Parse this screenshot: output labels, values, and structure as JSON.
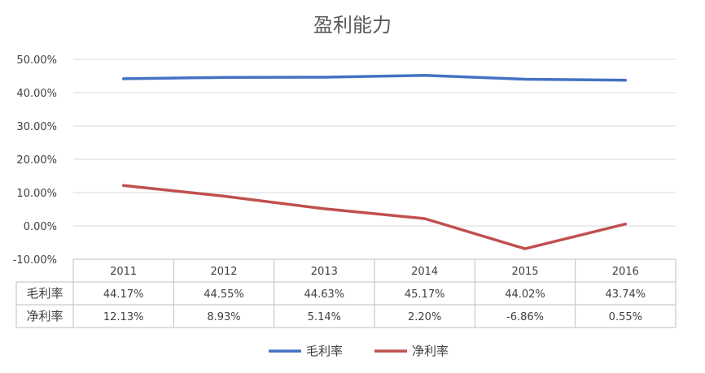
{
  "chart_data": {
    "type": "line",
    "title": "盈利能力",
    "categories": [
      "2011",
      "2012",
      "2013",
      "2014",
      "2015",
      "2016"
    ],
    "ylim": [
      -10,
      50
    ],
    "y_ticks": [
      "50.00%",
      "40.00%",
      "30.00%",
      "20.00%",
      "10.00%",
      "0.00%",
      "-10.00%"
    ],
    "series": [
      {
        "name": "毛利率",
        "color": "#4472c4",
        "values": [
          44.17,
          44.55,
          44.63,
          45.17,
          44.02,
          43.74
        ],
        "labels": [
          "44.17%",
          "44.55%",
          "44.63%",
          "45.17%",
          "44.02%",
          "43.74%"
        ]
      },
      {
        "name": "净利率",
        "color": "#c0504d",
        "values": [
          12.13,
          8.93,
          5.14,
          2.2,
          -6.86,
          0.55
        ],
        "labels": [
          "12.13%",
          "8.93%",
          "5.14%",
          "2.20%",
          "-6.86%",
          "0.55%"
        ]
      }
    ],
    "grid": true,
    "legend": "bottom",
    "data_table": true
  }
}
